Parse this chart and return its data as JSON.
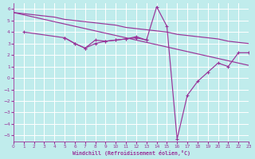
{
  "xlabel": "Windchill (Refroidissement éolien,°C)",
  "xlim": [
    0,
    23
  ],
  "ylim": [
    -5.5,
    6.5
  ],
  "yticks": [
    -5,
    -4,
    -3,
    -2,
    -1,
    0,
    1,
    2,
    3,
    4,
    5,
    6
  ],
  "xticks": [
    0,
    1,
    2,
    3,
    4,
    5,
    6,
    7,
    8,
    9,
    10,
    11,
    12,
    13,
    14,
    15,
    16,
    17,
    18,
    19,
    20,
    21,
    22,
    23
  ],
  "bg_color": "#c0ecec",
  "grid_color": "#aadddd",
  "line_color": "#993399",
  "line_smooth1": {
    "x": [
      0,
      1,
      2,
      3,
      4,
      5,
      6,
      7,
      8,
      9,
      10,
      11,
      12,
      13,
      14,
      15,
      16,
      17,
      18,
      19,
      20,
      21,
      22,
      23
    ],
    "y": [
      5.7,
      5.6,
      5.5,
      5.4,
      5.3,
      5.1,
      5.0,
      4.9,
      4.8,
      4.7,
      4.6,
      4.4,
      4.3,
      4.2,
      4.1,
      4.0,
      3.8,
      3.7,
      3.6,
      3.5,
      3.4,
      3.2,
      3.1,
      3.0
    ]
  },
  "line_smooth2": {
    "x": [
      0,
      1,
      2,
      3,
      4,
      5,
      6,
      7,
      8,
      9,
      10,
      11,
      12,
      13,
      14,
      15,
      16,
      17,
      18,
      19,
      20,
      21,
      22,
      23
    ],
    "y": [
      5.7,
      5.5,
      5.3,
      5.1,
      4.9,
      4.7,
      4.5,
      4.3,
      4.1,
      3.9,
      3.7,
      3.5,
      3.3,
      3.1,
      2.9,
      2.7,
      2.5,
      2.3,
      2.1,
      1.9,
      1.7,
      1.5,
      1.3,
      1.1
    ]
  },
  "line_jagged": {
    "x": [
      1,
      5,
      6,
      7,
      8,
      9,
      10,
      11,
      12,
      13,
      14,
      15,
      16,
      17,
      18,
      19,
      20,
      21,
      22,
      23
    ],
    "y": [
      4.0,
      3.5,
      3.0,
      2.6,
      3.3,
      3.2,
      3.3,
      3.4,
      3.6,
      3.3,
      6.2,
      4.5,
      -5.3,
      -1.5,
      -0.3,
      0.5,
      1.3,
      1.0,
      2.2,
      2.2
    ]
  },
  "line_small": {
    "x": [
      5,
      6,
      7,
      8,
      9,
      10,
      11,
      12,
      13
    ],
    "y": [
      3.5,
      3.0,
      2.6,
      3.0,
      3.2,
      3.3,
      3.4,
      3.5,
      3.3
    ]
  }
}
